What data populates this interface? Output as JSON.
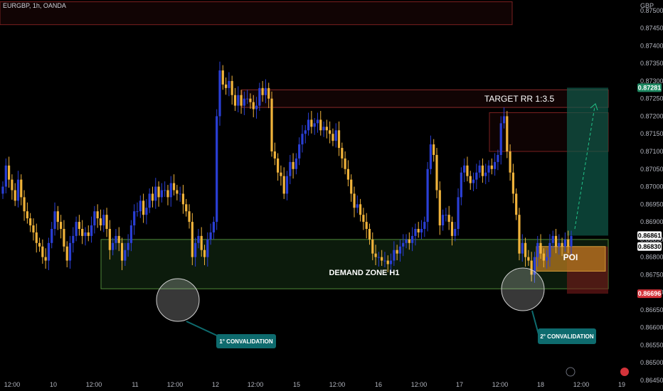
{
  "header": {
    "symbol_line": "EURGBP, 1h, OANDA",
    "currency": "GBP"
  },
  "colors": {
    "background": "#000000",
    "bull": "#2a3fd6",
    "bear": "#f0b33b",
    "demand_zone": "#2f6b2f",
    "resistance_zone": "#8a1f1f",
    "target_zone": "#0f5a4a",
    "stop_zone": "#7a1a1a",
    "poi": "#b5791f",
    "callout": "#0e6b6e"
  },
  "annotations": {
    "target_label": "TARGET RR 1:3.5",
    "demand_label": "DEMAND ZONE H1",
    "poi_label": "POI",
    "callout_1": "1° CONVALIDATION",
    "callout_2": "2° CONVALIDATION"
  },
  "price_tags": {
    "target": "0.87281",
    "current": "0.86861",
    "entry": "0.86830",
    "stop": "0.86696"
  },
  "chart_data": {
    "type": "candlestick",
    "title": "EURGBP, 1h, OANDA",
    "ylabel": "GBP",
    "ylim": [
      0.8645,
      0.8753
    ],
    "y_ticks": [
      "0.87500",
      "0.87450",
      "0.87400",
      "0.87350",
      "0.87300",
      "0.87250",
      "0.87200",
      "0.87150",
      "0.87100",
      "0.87050",
      "0.87000",
      "0.86950",
      "0.86900",
      "0.86850",
      "0.86800",
      "0.86750",
      "0.86700",
      "0.86650",
      "0.86600",
      "0.86550",
      "0.86500",
      "0.86450"
    ],
    "x_ticks": [
      "12:00",
      "10",
      "12:00",
      "11",
      "12:00",
      "12",
      "12:00",
      "15",
      "12:00",
      "16",
      "12:00",
      "17",
      "12:00",
      "18",
      "12:00",
      "19"
    ],
    "zones": {
      "demand_zone_h1": [
        0.8671,
        0.8685
      ],
      "resistance_top": [
        0.8746,
        0.87525
      ],
      "resistance_mid": [
        0.87225,
        0.87275
      ],
      "sell_zone": [
        0.871,
        0.8721
      ],
      "take_profit": [
        0.86861,
        0.87281
      ],
      "stop_loss": [
        0.86696,
        0.8683
      ]
    },
    "levels": {
      "target": 0.87281,
      "current": 0.86861,
      "entry": 0.8683,
      "stop": 0.86696
    },
    "closes": [
      0.87,
      0.8706,
      0.8702,
      0.8699,
      0.8696,
      0.8702,
      0.8697,
      0.8693,
      0.8691,
      0.8689,
      0.8687,
      0.8684,
      0.8683,
      0.868,
      0.8679,
      0.8684,
      0.8688,
      0.8693,
      0.869,
      0.8688,
      0.8683,
      0.8679,
      0.8684,
      0.8686,
      0.869,
      0.8688,
      0.8686,
      0.8687,
      0.8686,
      0.8689,
      0.8693,
      0.8691,
      0.8689,
      0.8692,
      0.8688,
      0.8682,
      0.8684,
      0.8686,
      0.8684,
      0.8679,
      0.8682,
      0.8684,
      0.8689,
      0.8693,
      0.8693,
      0.8696,
      0.8692,
      0.8694,
      0.8698,
      0.8696,
      0.87,
      0.8697,
      0.8699,
      0.8699,
      0.8697,
      0.8701,
      0.8699,
      0.8698,
      0.8698,
      0.8695,
      0.8693,
      0.869,
      0.868,
      0.8684,
      0.8686,
      0.8682,
      0.868,
      0.8685,
      0.8687,
      0.869,
      0.872,
      0.8733,
      0.8729,
      0.8728,
      0.873,
      0.8726,
      0.8723,
      0.8726,
      0.8723,
      0.8725,
      0.8725,
      0.8724,
      0.8722,
      0.8723,
      0.8728,
      0.8726,
      0.8728,
      0.8725,
      0.871,
      0.8708,
      0.8704,
      0.8703,
      0.8698,
      0.8703,
      0.8707,
      0.8705,
      0.8708,
      0.8712,
      0.8715,
      0.8716,
      0.8719,
      0.8717,
      0.8718,
      0.8719,
      0.8716,
      0.8717,
      0.8716,
      0.8715,
      0.8713,
      0.8716,
      0.8711,
      0.8708,
      0.8705,
      0.8702,
      0.8698,
      0.8694,
      0.8695,
      0.8692,
      0.869,
      0.8688,
      0.8685,
      0.8681,
      0.868,
      0.868,
      0.8679,
      0.8679,
      0.8678,
      0.8679,
      0.8682,
      0.8681,
      0.8683,
      0.8684,
      0.8685,
      0.8684,
      0.8686,
      0.8688,
      0.8687,
      0.8688,
      0.869,
      0.8705,
      0.8712,
      0.8709,
      0.8699,
      0.8689,
      0.8692,
      0.8692,
      0.869,
      0.8686,
      0.8688,
      0.8697,
      0.8704,
      0.8706,
      0.8703,
      0.8701,
      0.8702,
      0.8704,
      0.8706,
      0.8703,
      0.8704,
      0.8706,
      0.8705,
      0.8707,
      0.8709,
      0.8718,
      0.872,
      0.871,
      0.8704,
      0.8698,
      0.8692,
      0.8681,
      0.8684,
      0.868,
      0.8679,
      0.8675,
      0.868,
      0.8684,
      0.8681,
      0.8679,
      0.868,
      0.8684,
      0.8686,
      0.8683,
      0.8684,
      0.8683,
      0.8685,
      0.8683,
      0.8686
    ]
  }
}
